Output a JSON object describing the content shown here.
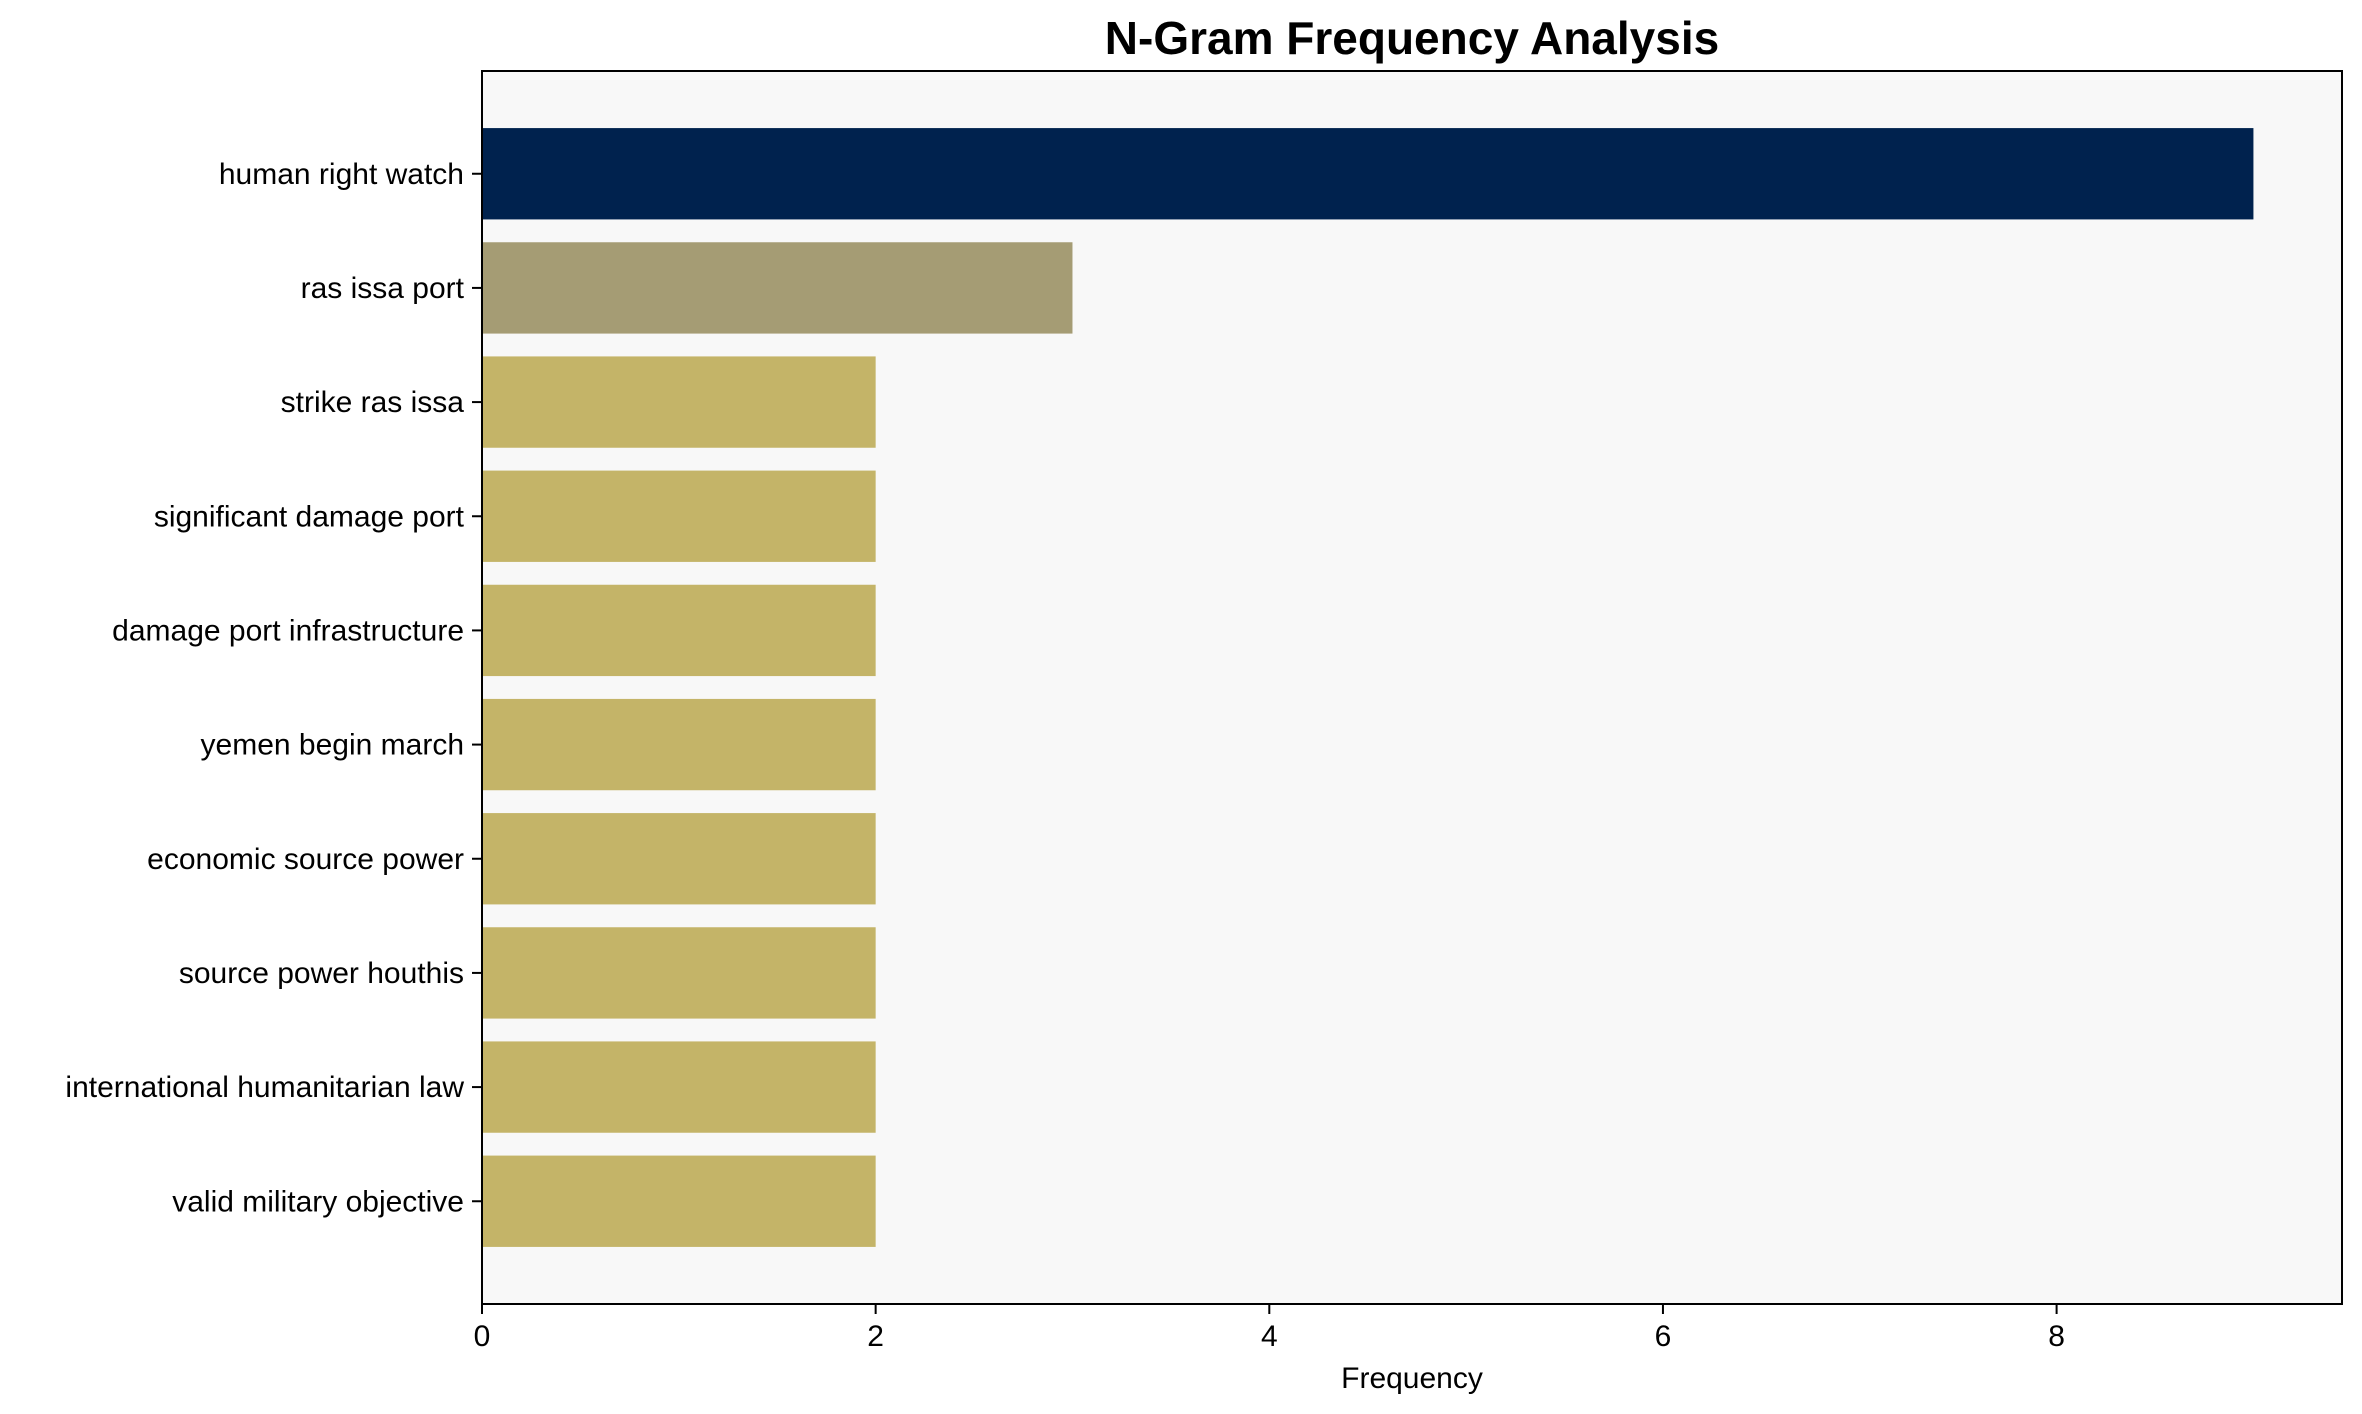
{
  "chart_data": {
    "type": "bar",
    "orientation": "horizontal",
    "title": "N-Gram Frequency Analysis",
    "xlabel": "Frequency",
    "ylabel": "",
    "xlim": [
      0,
      9.45
    ],
    "xticks": [
      0,
      2,
      4,
      6,
      8
    ],
    "grid": false,
    "background_color": "#f8f8f8",
    "categories": [
      "human right watch",
      "ras issa port",
      "strike ras issa",
      "significant damage port",
      "damage port infrastructure",
      "yemen begin march",
      "economic source power",
      "source power houthis",
      "international humanitarian law",
      "valid military objective"
    ],
    "values": [
      9,
      3,
      2,
      2,
      2,
      2,
      2,
      2,
      2,
      2
    ],
    "colors": [
      "#00224e",
      "#a59c74",
      "#c4b468",
      "#c4b468",
      "#c4b468",
      "#c4b468",
      "#c4b468",
      "#c4b468",
      "#c4b468",
      "#c4b468"
    ]
  }
}
